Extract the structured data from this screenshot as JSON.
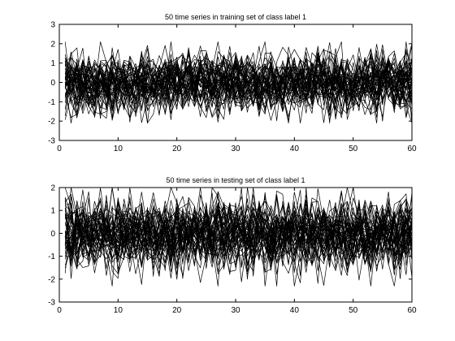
{
  "chart_data": [
    {
      "type": "line",
      "title": "50 time series in training set of class label 1",
      "xlabel": "",
      "ylabel": "",
      "xlim": [
        0,
        60
      ],
      "ylim": [
        -3,
        3
      ],
      "xticks": [
        0,
        10,
        20,
        30,
        40,
        50,
        60
      ],
      "yticks": [
        -3,
        -2,
        -1,
        0,
        1,
        2,
        3
      ],
      "x_start": 1,
      "x_end": 60,
      "series_count": 50,
      "approx_value_range": [
        -2.1,
        2.1
      ],
      "line_color": "#000000",
      "grid": false
    },
    {
      "type": "line",
      "title": "50 time series in testing set of class label 1",
      "xlabel": "",
      "ylabel": "",
      "xlim": [
        0,
        60
      ],
      "ylim": [
        -3,
        2
      ],
      "xticks": [
        0,
        10,
        20,
        30,
        40,
        50,
        60
      ],
      "yticks": [
        -3,
        -2,
        -1,
        0,
        1,
        2
      ],
      "x_start": 1,
      "x_end": 60,
      "series_count": 50,
      "approx_value_range": [
        -2.3,
        2.0
      ],
      "line_color": "#000000",
      "grid": false
    }
  ]
}
